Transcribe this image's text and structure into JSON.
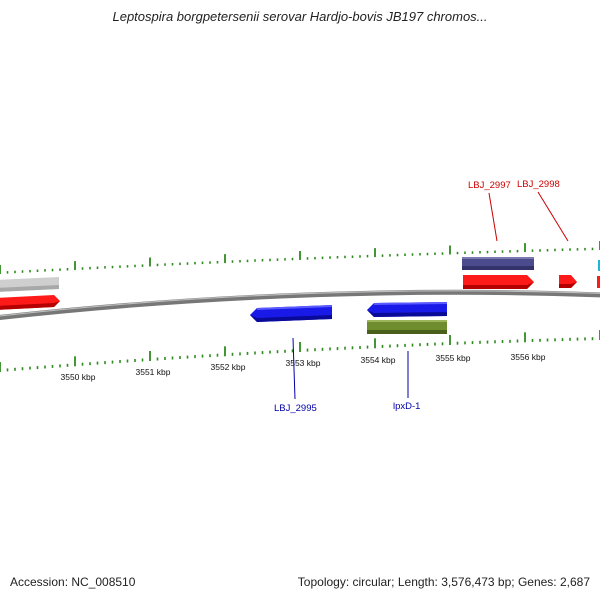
{
  "title": "Leptospira borgpetersenii serovar Hardjo-bovis JB197 chromos...",
  "footer": {
    "accession": "Accession: NC_008510",
    "topology": "Topology: circular; Length: 3,576,473 bp; Genes: 2,687"
  },
  "colors": {
    "backbone": "#7a7a7a",
    "ticks": "#2e8b1e",
    "kbp_label": "#111111",
    "forward_gene": "#ff0000",
    "reverse_gene": "#1414e6",
    "forward_label": "#cc0000",
    "reverse_label": "#0000aa",
    "gray_feature": "#c8c8c8",
    "purple_feature": "#4a4a8c",
    "olive_feature": "#6e8a2e",
    "cyan_feature": "#19b8d8"
  },
  "kbp_labels": [
    "3550 kbp",
    "3551 kbp",
    "3552 kbp",
    "3553 kbp",
    "3554 kbp",
    "3555 kbp",
    "3556 kbp"
  ],
  "gene_labels": [
    {
      "name": "LBJ_2997",
      "strand": "forward"
    },
    {
      "name": "LBJ_2998",
      "strand": "forward"
    },
    {
      "name": "LBJ_2995",
      "strand": "reverse"
    },
    {
      "name": "lpxD-1",
      "strand": "reverse"
    }
  ]
}
